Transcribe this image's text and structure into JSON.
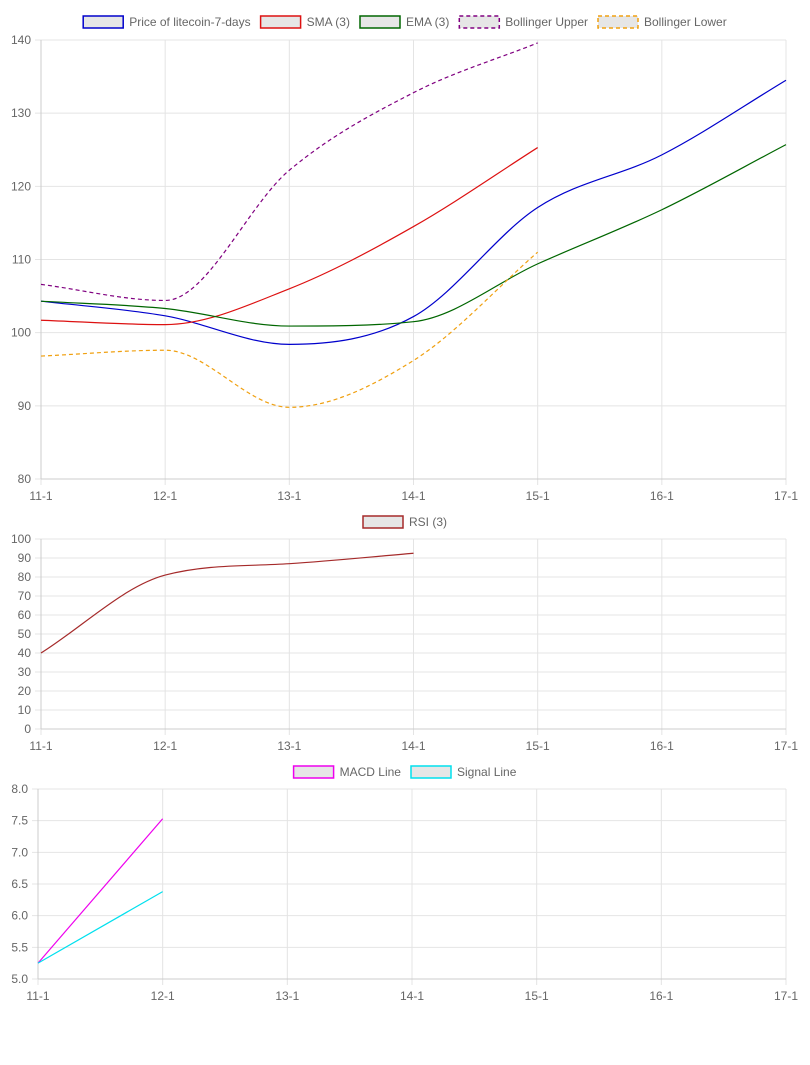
{
  "chart_data": [
    {
      "type": "line",
      "categories": [
        "11-1",
        "12-1",
        "13-1",
        "14-1",
        "15-1",
        "16-1",
        "17-1"
      ],
      "ylim": [
        80,
        140
      ],
      "yticks": [
        80,
        90,
        100,
        110,
        120,
        130,
        140
      ],
      "grid": true,
      "legend": "top",
      "series": [
        {
          "name": "Price of litecoin-7-days",
          "color": "#0000cc",
          "dashed": false,
          "values": [
            104.3,
            102.3,
            98.4,
            102.2,
            117.1,
            124.3,
            134.5
          ]
        },
        {
          "name": "SMA (3)",
          "color": "#dd1111",
          "dashed": false,
          "values": [
            101.7,
            101.1,
            106.0,
            114.5,
            125.3,
            null,
            null
          ]
        },
        {
          "name": "EMA (3)",
          "color": "#006600",
          "dashed": false,
          "values": [
            104.3,
            103.3,
            100.9,
            101.5,
            109.4,
            116.8,
            125.7
          ]
        },
        {
          "name": "Bollinger Upper",
          "color": "#800080",
          "dashed": true,
          "values": [
            106.6,
            104.4,
            122.2,
            132.8,
            139.6,
            null,
            null
          ]
        },
        {
          "name": "Bollinger Lower",
          "color": "#f0a010",
          "dashed": true,
          "values": [
            96.8,
            97.6,
            89.8,
            96.2,
            111.0,
            null,
            null
          ]
        }
      ]
    },
    {
      "type": "line",
      "categories": [
        "11-1",
        "12-1",
        "13-1",
        "14-1",
        "15-1",
        "16-1",
        "17-1"
      ],
      "ylim": [
        0,
        100
      ],
      "yticks": [
        0,
        10,
        20,
        30,
        40,
        50,
        60,
        70,
        80,
        90,
        100
      ],
      "grid": true,
      "legend": "top",
      "series": [
        {
          "name": "RSI (3)",
          "color": "#a52a2a",
          "dashed": false,
          "values": [
            40,
            81,
            87,
            92.5,
            null,
            null,
            null
          ]
        }
      ]
    },
    {
      "type": "line",
      "categories": [
        "11-1",
        "12-1",
        "13-1",
        "14-1",
        "15-1",
        "16-1",
        "17-1"
      ],
      "ylim": [
        5.0,
        8.0
      ],
      "yticks": [
        "5.0",
        "5.5",
        "6.0",
        "6.5",
        "7.0",
        "7.5",
        "8.0"
      ],
      "grid": true,
      "legend": "top",
      "series": [
        {
          "name": "MACD Line",
          "color": "#ee00ee",
          "dashed": false,
          "values": [
            5.25,
            7.53,
            null,
            null,
            null,
            null,
            null
          ]
        },
        {
          "name": "Signal Line",
          "color": "#00e0ee",
          "dashed": false,
          "values": [
            5.25,
            6.38,
            null,
            null,
            null,
            null,
            null
          ]
        }
      ]
    }
  ]
}
